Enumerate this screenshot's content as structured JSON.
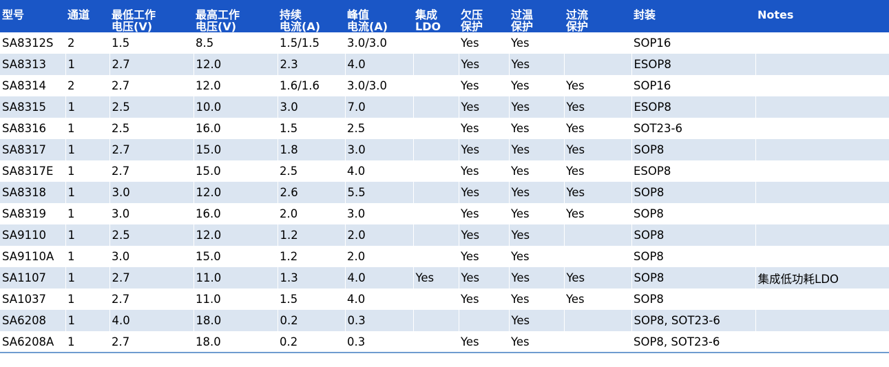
{
  "table": {
    "headers": [
      "型号",
      "通道",
      "最低工作\n电压(V)",
      "最高工作\n电压(V)",
      "持续\n电流(A)",
      "峰值\n电流(A)",
      "集成\nLDO",
      "欠压\n保护",
      "过温\n保护",
      "过流\n保护",
      "封装",
      "Notes"
    ],
    "rows": [
      [
        "SA8312S",
        "2",
        "1.5",
        "8.5",
        "1.5/1.5",
        "3.0/3.0",
        "",
        "Yes",
        "Yes",
        "",
        "SOP16",
        ""
      ],
      [
        "SA8313",
        "1",
        "2.7",
        "12.0",
        "2.3",
        "4.0",
        "",
        "Yes",
        "Yes",
        "",
        "ESOP8",
        ""
      ],
      [
        "SA8314",
        "2",
        "2.7",
        "12.0",
        "1.6/1.6",
        "3.0/3.0",
        "",
        "Yes",
        "Yes",
        "Yes",
        "SOP16",
        ""
      ],
      [
        "SA8315",
        "1",
        "2.5",
        "10.0",
        "3.0",
        "7.0",
        "",
        "Yes",
        "Yes",
        "Yes",
        "ESOP8",
        ""
      ],
      [
        "SA8316",
        "1",
        "2.5",
        "16.0",
        "1.5",
        "2.5",
        "",
        "Yes",
        "Yes",
        "Yes",
        "SOT23-6",
        ""
      ],
      [
        "SA8317",
        "1",
        "2.7",
        "15.0",
        "1.8",
        "3.0",
        "",
        "Yes",
        "Yes",
        "Yes",
        "SOP8",
        ""
      ],
      [
        "SA8317E",
        "1",
        "2.7",
        "15.0",
        "2.5",
        "4.0",
        "",
        "Yes",
        "Yes",
        "Yes",
        "ESOP8",
        ""
      ],
      [
        "SA8318",
        "1",
        "3.0",
        "12.0",
        "2.6",
        "5.5",
        "",
        "Yes",
        "Yes",
        "Yes",
        "SOP8",
        ""
      ],
      [
        "SA8319",
        "1",
        "3.0",
        "16.0",
        "2.0",
        "3.0",
        "",
        "Yes",
        "Yes",
        "Yes",
        "SOP8",
        ""
      ],
      [
        "SA9110",
        "1",
        "2.5",
        "12.0",
        "1.2",
        "2.0",
        "",
        "Yes",
        "Yes",
        "",
        "SOP8",
        ""
      ],
      [
        "SA9110A",
        "1",
        "3.0",
        "15.0",
        "1.2",
        "2.0",
        "",
        "Yes",
        "Yes",
        "",
        "SOP8",
        ""
      ],
      [
        "SA1107",
        "1",
        "2.7",
        "11.0",
        "1.3",
        "4.0",
        "Yes",
        "Yes",
        "Yes",
        "Yes",
        "SOP8",
        "集成低功耗LDO"
      ],
      [
        "SA1037",
        "1",
        "2.7",
        "11.0",
        "1.5",
        "4.0",
        "",
        "Yes",
        "Yes",
        "Yes",
        "SOP8",
        ""
      ],
      [
        "SA6208",
        "1",
        "4.0",
        "18.0",
        "0.2",
        "0.3",
        "",
        "",
        "Yes",
        "",
        "SOP8, SOT23-6",
        ""
      ],
      [
        "SA6208A",
        "1",
        "2.7",
        "18.0",
        "0.2",
        "0.3",
        "",
        "Yes",
        "Yes",
        "",
        "SOP8, SOT23-6",
        ""
      ]
    ]
  }
}
